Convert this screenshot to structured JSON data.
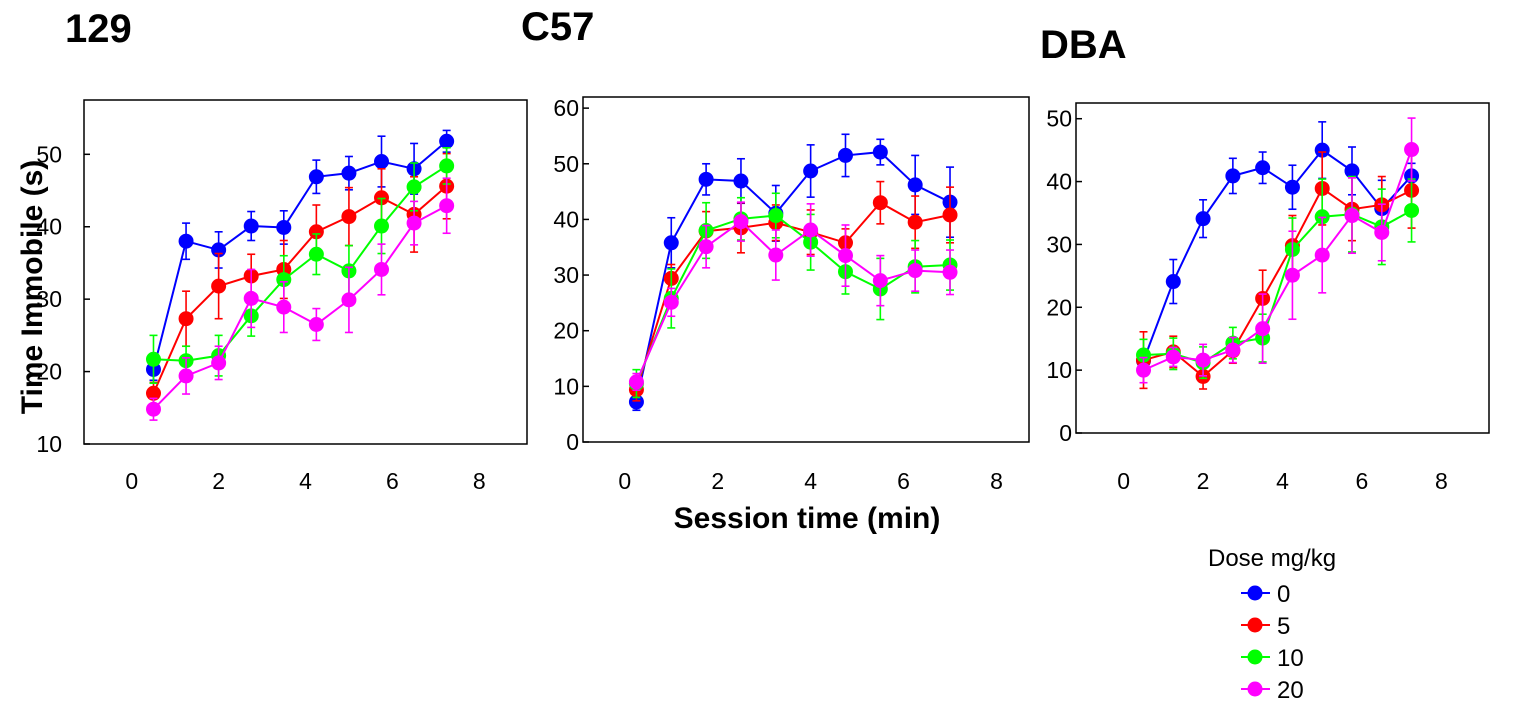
{
  "chart_data": [
    {
      "type": "line",
      "title": "129",
      "ylabel": "Time Immobile (s)",
      "xlabel": "",
      "xlim": [
        -1.1,
        9.1
      ],
      "ylim": [
        10,
        57.5
      ],
      "xticks": [
        0,
        2,
        4,
        6,
        8
      ],
      "yticks": [
        10,
        20,
        30,
        40,
        50
      ],
      "x": [
        0.5,
        1.25,
        2.0,
        2.75,
        3.5,
        4.25,
        5.0,
        5.75,
        6.5,
        7.25
      ],
      "series": [
        {
          "name": "0",
          "color": "#0000ff",
          "values": [
            20.3,
            38.0,
            36.8,
            40.1,
            39.9,
            46.9,
            47.4,
            49.0,
            48.0,
            51.8
          ],
          "errors": [
            1.5,
            2.5,
            2.5,
            2.0,
            2.3,
            2.3,
            2.3,
            3.5,
            3.5,
            1.5
          ]
        },
        {
          "name": "5",
          "color": "#ff0000",
          "values": [
            17.0,
            27.3,
            31.8,
            33.2,
            34.1,
            39.3,
            41.4,
            44.0,
            41.7,
            45.6
          ],
          "errors": [
            1.5,
            3.8,
            4.5,
            3.0,
            4.0,
            3.7,
            4.0,
            4.0,
            5.2,
            4.5
          ]
        },
        {
          "name": "10",
          "color": "#00ff00",
          "values": [
            21.7,
            21.5,
            22.2,
            27.7,
            32.7,
            36.2,
            33.9,
            40.1,
            45.5,
            48.4
          ],
          "errors": [
            3.3,
            2.0,
            2.8,
            2.8,
            3.3,
            2.8,
            3.5,
            3.8,
            3.3,
            2.5
          ]
        },
        {
          "name": "20",
          "color": "#ff00ff",
          "values": [
            14.8,
            19.4,
            21.2,
            30.1,
            28.9,
            26.5,
            29.9,
            34.1,
            40.5,
            42.9
          ],
          "errors": [
            1.5,
            2.5,
            2.3,
            4.0,
            3.5,
            2.2,
            4.5,
            3.5,
            3.0,
            3.8
          ]
        }
      ]
    },
    {
      "type": "line",
      "title": "C57",
      "ylabel": "",
      "xlabel": "Session time (min)",
      "xlim": [
        -0.9,
        8.7
      ],
      "ylim": [
        0,
        62
      ],
      "xticks": [
        0,
        2,
        4,
        6,
        8
      ],
      "yticks": [
        0,
        10,
        20,
        30,
        40,
        50,
        60
      ],
      "x": [
        0.25,
        1.0,
        1.75,
        2.5,
        3.25,
        4.0,
        4.75,
        5.5,
        6.25,
        7.0
      ],
      "series": [
        {
          "name": "0",
          "color": "#0000ff",
          "values": [
            7.2,
            35.8,
            47.2,
            46.9,
            41.1,
            48.7,
            51.5,
            52.1,
            46.2,
            43.1
          ],
          "errors": [
            1.5,
            4.5,
            2.8,
            4.0,
            5.0,
            4.7,
            3.8,
            2.3,
            5.3,
            6.3
          ]
        },
        {
          "name": "5",
          "color": "#ff0000",
          "values": [
            9.4,
            29.4,
            37.9,
            38.5,
            39.4,
            37.7,
            35.8,
            43.0,
            39.5,
            40.8
          ],
          "errors": [
            2.0,
            2.5,
            3.5,
            4.5,
            3.2,
            4.0,
            2.5,
            3.8,
            4.7,
            5.0
          ]
        },
        {
          "name": "10",
          "color": "#00ff00",
          "values": [
            10.5,
            25.8,
            38.0,
            40.1,
            40.7,
            35.9,
            30.6,
            27.5,
            31.5,
            31.8
          ],
          "errors": [
            2.5,
            5.3,
            5.0,
            3.8,
            4.0,
            5.0,
            4.0,
            5.5,
            4.7,
            4.5
          ]
        },
        {
          "name": "20",
          "color": "#ff00ff",
          "values": [
            10.8,
            25.1,
            35.1,
            39.6,
            33.6,
            38.1,
            33.5,
            29.0,
            30.8,
            30.5
          ],
          "errors": [
            1.5,
            2.5,
            3.8,
            3.5,
            4.5,
            4.7,
            5.5,
            4.5,
            3.7,
            4.0
          ]
        }
      ]
    },
    {
      "type": "line",
      "title": "DBA",
      "ylabel": "",
      "xlabel": "",
      "xlim": [
        -1.2,
        9.2
      ],
      "ylim": [
        0,
        52.5
      ],
      "xticks": [
        0,
        2,
        4,
        6,
        8
      ],
      "yticks": [
        0,
        10,
        20,
        30,
        40,
        50
      ],
      "x": [
        0.5,
        1.25,
        2.0,
        2.75,
        3.5,
        4.25,
        5.0,
        5.75,
        6.5,
        7.25
      ],
      "series": [
        {
          "name": "0",
          "color": "#0000ff",
          "values": [
            11.5,
            24.1,
            34.1,
            40.9,
            42.2,
            39.1,
            45.0,
            41.7,
            35.7,
            40.9
          ],
          "errors": [
            1.5,
            3.5,
            3.0,
            2.8,
            2.5,
            3.5,
            4.5,
            3.8,
            4.5,
            2.0
          ]
        },
        {
          "name": "5",
          "color": "#ff0000",
          "values": [
            11.6,
            12.9,
            9.0,
            13.1,
            21.4,
            29.8,
            38.9,
            35.6,
            36.3,
            38.6
          ],
          "errors": [
            4.5,
            2.5,
            2.0,
            2.0,
            4.5,
            4.8,
            5.8,
            5.0,
            4.5,
            6.0
          ]
        },
        {
          "name": "10",
          "color": "#00ff00",
          "values": [
            12.4,
            12.6,
            11.2,
            14.3,
            15.1,
            29.2,
            34.4,
            34.8,
            32.8,
            35.4
          ],
          "errors": [
            2.5,
            2.5,
            2.5,
            2.5,
            3.8,
            5.0,
            6.0,
            6.0,
            6.0,
            5.0
          ]
        },
        {
          "name": "20",
          "color": "#ff00ff",
          "values": [
            10.0,
            12.1,
            11.6,
            13.2,
            16.6,
            25.1,
            28.3,
            34.6,
            31.9,
            45.1
          ],
          "errors": [
            2.0,
            1.5,
            2.5,
            2.0,
            5.5,
            7.0,
            6.0,
            6.0,
            4.5,
            5.0
          ]
        }
      ]
    }
  ],
  "legend": {
    "title": "Dose mg/kg",
    "items": [
      {
        "label": "0",
        "color": "#0000ff"
      },
      {
        "label": "5",
        "color": "#ff0000"
      },
      {
        "label": "10",
        "color": "#00ff00"
      },
      {
        "label": "20",
        "color": "#ff00ff"
      }
    ]
  }
}
